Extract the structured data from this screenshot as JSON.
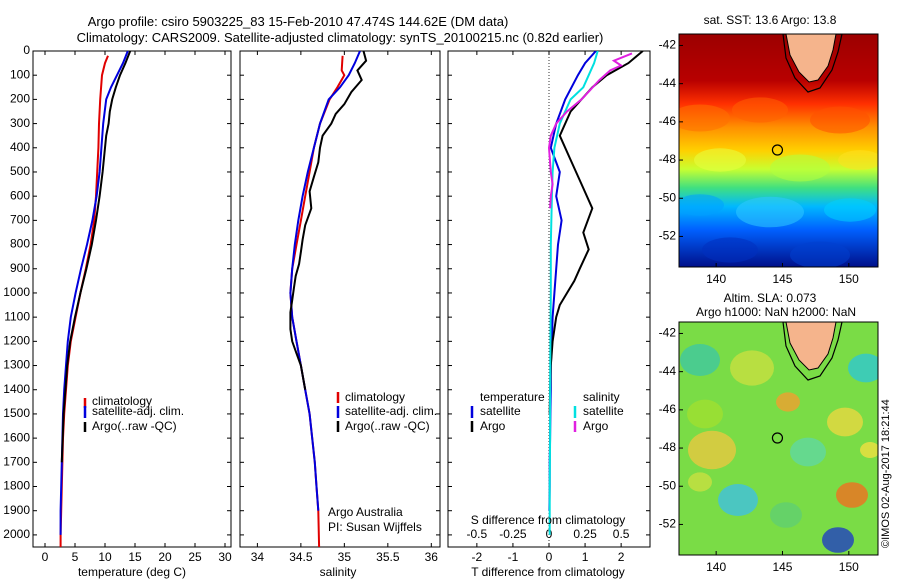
{
  "header": {
    "line1": "Argo profile: csiro 5903225_83 15-Feb-2010 47.474S 144.62E (DM data)",
    "line2": "Climatology: CARS2009. Satellite-adjusted climatology: synTS_20100215.nc (0.82d earlier)"
  },
  "credit": {
    "org": "Argo Australia",
    "pi": "PI: Susan Wijffels",
    "watermark": "©IMOS 02-Aug-2017 18:21:44"
  },
  "colors": {
    "climatology": "#e00000",
    "satellite": "#0000dd",
    "argo": "#000000",
    "sal_satellite": "#00e0e0",
    "sal_argo": "#e020e0",
    "land": "#f5b48c"
  },
  "chart_data": [
    {
      "type": "line",
      "xlabel": "temperature (deg C)",
      "ylabel": "",
      "xlim": [
        -2,
        31
      ],
      "ylim": [
        2050,
        0
      ],
      "xticks": [
        0,
        5,
        10,
        15,
        20,
        25,
        30
      ],
      "yticks": [
        0,
        100,
        200,
        300,
        400,
        500,
        600,
        700,
        800,
        900,
        1000,
        1100,
        1200,
        1300,
        1400,
        1500,
        1600,
        1700,
        1800,
        1900,
        2000
      ],
      "legend": [
        "climatology",
        "satellite-adj. clim.",
        "Argo(..raw -QC)"
      ],
      "legend_position": "lower-center",
      "series": [
        {
          "name": "climatology",
          "x": [
            10.5,
            10,
            9.5,
            9.2,
            9,
            8.9,
            8.7,
            8.5,
            8.2,
            7.6,
            6.8,
            5.9,
            5.1,
            4.3,
            3.8,
            3.5,
            3.2,
            3.0,
            2.9,
            2.8,
            2.7,
            2.6,
            2.6
          ],
          "y": [
            20,
            50,
            100,
            200,
            300,
            400,
            500,
            600,
            700,
            800,
            900,
            1000,
            1100,
            1200,
            1300,
            1400,
            1500,
            1600,
            1700,
            1800,
            1900,
            2000,
            2050
          ]
        },
        {
          "name": "satellite-adj. clim.",
          "x": [
            13.8,
            13,
            12,
            11,
            10.2,
            9.7,
            9.4,
            9.1,
            8.6,
            7.9,
            7,
            6,
            5.1,
            4.3,
            3.8,
            3.5,
            3.2,
            3.0,
            2.9,
            2.8,
            2.7,
            2.6,
            2.6
          ],
          "y": [
            0,
            50,
            100,
            150,
            200,
            300,
            400,
            500,
            600,
            700,
            800,
            900,
            1000,
            1100,
            1200,
            1300,
            1400,
            1500,
            1600,
            1700,
            1800,
            1900,
            2000
          ]
        },
        {
          "name": "Argo(..raw -QC)",
          "x": [
            14.2,
            13.4,
            12.5,
            11.8,
            11.2,
            10.8,
            10.6,
            10.2,
            10,
            9.6,
            9.1,
            8.5,
            7.8,
            6.9,
            5.9,
            5,
            4.2,
            3.7,
            3.4,
            3.1,
            2.95,
            2.8
          ],
          "y": [
            0,
            50,
            100,
            150,
            200,
            250,
            300,
            350,
            400,
            500,
            600,
            700,
            800,
            900,
            1000,
            1100,
            1200,
            1300,
            1400,
            1500,
            1600,
            1700
          ]
        }
      ]
    },
    {
      "type": "line",
      "xlabel": "salinity",
      "ylabel": "",
      "xlim": [
        33.8,
        36.1
      ],
      "ylim": [
        2050,
        0
      ],
      "xticks": [
        34,
        34.5,
        35,
        35.5,
        36
      ],
      "yticks": [],
      "legend": [
        "climatology",
        "satellite-adj. clim.",
        "Argo(..raw -QC)"
      ],
      "legend_position": "lower-right",
      "series": [
        {
          "name": "climatology",
          "x": [
            34.98,
            34.97,
            35.0,
            34.92,
            34.83,
            34.72,
            34.65,
            34.6,
            34.55,
            34.5,
            34.45,
            34.4,
            34.38,
            34.4,
            34.45,
            34.5,
            34.55,
            34.6,
            34.63,
            34.66,
            34.68,
            34.7,
            34.71
          ],
          "y": [
            20,
            80,
            100,
            150,
            200,
            300,
            400,
            500,
            600,
            700,
            800,
            900,
            1000,
            1100,
            1200,
            1300,
            1400,
            1500,
            1600,
            1700,
            1800,
            1900,
            2050
          ]
        },
        {
          "name": "satellite-adj. clim.",
          "x": [
            35.18,
            35.12,
            35.05,
            34.95,
            34.82,
            34.72,
            34.65,
            34.58,
            34.52,
            34.47,
            34.43,
            34.4,
            34.38,
            34.4,
            34.45,
            34.5,
            34.55,
            34.6,
            34.63,
            34.66,
            34.68,
            34.7
          ],
          "y": [
            0,
            50,
            100,
            150,
            200,
            300,
            400,
            500,
            600,
            700,
            800,
            900,
            1000,
            1100,
            1200,
            1300,
            1400,
            1500,
            1600,
            1700,
            1800,
            1900
          ]
        },
        {
          "name": "Argo(..raw -QC)",
          "x": [
            35.22,
            35.25,
            35.15,
            35.2,
            35.08,
            35.0,
            34.9,
            34.85,
            34.75,
            34.72,
            34.7,
            34.65,
            34.6,
            34.62,
            34.55,
            34.52,
            34.5,
            34.48,
            34.44,
            34.42,
            34.4,
            34.38,
            34.38,
            34.4,
            34.45,
            34.5,
            34.55
          ],
          "y": [
            0,
            40,
            80,
            120,
            170,
            220,
            260,
            300,
            350,
            400,
            460,
            520,
            580,
            650,
            720,
            780,
            830,
            880,
            930,
            980,
            1030,
            1080,
            1150,
            1200,
            1250,
            1300,
            1400
          ]
        }
      ]
    },
    {
      "type": "line",
      "xlabel": "T difference from climatology",
      "title": "S difference from climatology",
      "xlim": [
        -2.8,
        2.8
      ],
      "ylim": [
        2050,
        0
      ],
      "xticks": [
        -2,
        -1,
        0,
        1,
        2
      ],
      "top_xticks": [
        "-0.5",
        "-0.25",
        "0",
        "0.25",
        "0.5"
      ],
      "yticks": [],
      "legend": [
        "temperature",
        "satellite",
        "Argo",
        "salinity",
        "satellite",
        "Argo"
      ],
      "legend_position": "lower-center",
      "series": [
        {
          "name": "satellite",
          "x": [
            1.3,
            1.0,
            0.8,
            0.45,
            0.2,
            0.05,
            0.3,
            0.2,
            0.35,
            0.25,
            0.2,
            0.15,
            0.1,
            0.08,
            0.05,
            0.05,
            0.04,
            0.03,
            0.02,
            0.02,
            0.01
          ],
          "y": [
            0,
            50,
            100,
            200,
            300,
            400,
            500,
            600,
            700,
            800,
            900,
            1000,
            1100,
            1200,
            1300,
            1400,
            1500,
            1600,
            1700,
            1800,
            1900
          ]
        },
        {
          "name": "Argo",
          "x": [
            2.6,
            2.2,
            1.6,
            1.2,
            0.6,
            0.3,
            0.6,
            0.9,
            1.2,
            0.95,
            1.1,
            0.85,
            0.7,
            0.5,
            0.3,
            0.2,
            0.1,
            0.05,
            0.03,
            0.02
          ],
          "y": [
            0,
            50,
            100,
            150,
            250,
            350,
            450,
            550,
            650,
            750,
            820,
            900,
            950,
            1000,
            1050,
            1100,
            1200,
            1300,
            1400,
            1500
          ]
        },
        {
          "name": "satellite",
          "x": [
            1.35,
            1.25,
            1.1,
            0.95,
            0.6,
            0.3,
            0.15,
            0.1,
            0.08,
            0.05,
            0.05,
            0.04,
            0.03,
            0.03,
            0.02,
            0.02
          ],
          "y": [
            0,
            50,
            100,
            150,
            200,
            300,
            400,
            500,
            600,
            800,
            1000,
            1200,
            1400,
            1600,
            1800,
            2000
          ]
        },
        {
          "name": "Argo",
          "x": [
            2.3,
            1.8,
            2.0,
            1.7,
            1.4,
            0.9,
            0.5,
            0.2,
            0.05,
            0.0,
            0.05,
            0.1,
            0.05,
            0.03
          ],
          "y": [
            10,
            40,
            60,
            80,
            120,
            200,
            250,
            300,
            350,
            400,
            500,
            550,
            600,
            650
          ]
        }
      ]
    },
    {
      "type": "heatmap",
      "title": "sat. SST: 13.6 Argo: 13.8",
      "xticks": [
        140,
        145,
        150
      ],
      "yticks": [
        -42,
        -44,
        -46,
        -48,
        -50,
        -52
      ],
      "xlim": [
        137.2,
        152.2
      ],
      "ylim": [
        -53.6,
        -41.4
      ],
      "marker": {
        "lon": 144.62,
        "lat": -47.474
      }
    },
    {
      "type": "heatmap",
      "title": "Altim. SLA: 0.073",
      "subtitle": "Argo h1000: NaN h2000: NaN",
      "xticks": [
        140,
        145,
        150
      ],
      "yticks": [
        -42,
        -44,
        -46,
        -48,
        -50,
        -52
      ],
      "xlim": [
        137.2,
        152.2
      ],
      "ylim": [
        -53.6,
        -41.4
      ],
      "marker": {
        "lon": 144.62,
        "lat": -47.474
      }
    }
  ]
}
